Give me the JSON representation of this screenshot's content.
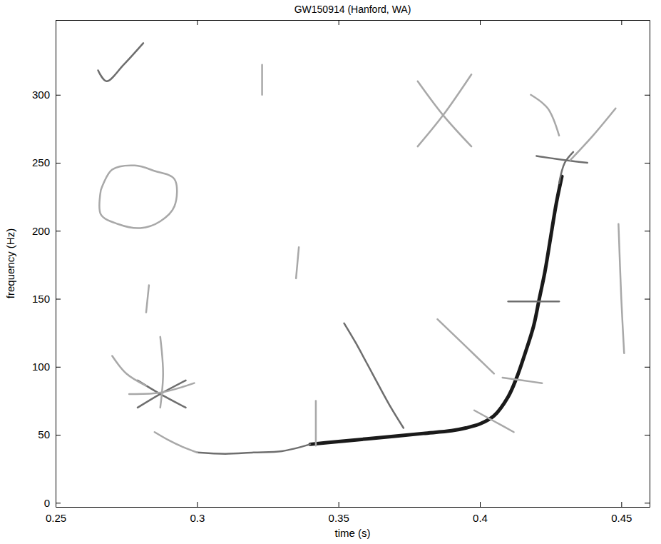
{
  "chart_data": {
    "type": "spectrogram",
    "title": "GW150914 (Hanford, WA)",
    "x_label": "time (s)",
    "y_label": "frequency (Hz)",
    "xlim": [
      0.25,
      0.46
    ],
    "ylim": [
      -3,
      355
    ],
    "xticks": [
      0.25,
      0.3,
      0.35,
      0.4,
      0.45
    ],
    "yticks": [
      0,
      50,
      100,
      150,
      200,
      250,
      300
    ],
    "grid": false,
    "series": [
      {
        "x": [
          0.34,
          0.35,
          0.36,
          0.37,
          0.38,
          0.39,
          0.395,
          0.4,
          0.405,
          0.41,
          0.413,
          0.416,
          0.419,
          0.421,
          0.423,
          0.425,
          0.427,
          0.429
        ],
        "values": [
          43,
          45,
          47,
          49,
          51,
          53,
          55,
          58,
          64,
          78,
          92,
          110,
          130,
          150,
          170,
          195,
          220,
          240
        ],
        "color": "#1a1a1a",
        "line_style": "bold"
      },
      {
        "x": [
          0.3,
          0.31,
          0.32,
          0.33,
          0.34
        ],
        "values": [
          37,
          36,
          37,
          38,
          43
        ],
        "color": "#6e6e6e",
        "line_style": "solid"
      },
      {
        "x": [
          0.285,
          0.29,
          0.295,
          0.3
        ],
        "values": [
          52,
          46,
          41,
          37
        ],
        "color": "#a8a8a8",
        "line_style": "solid"
      },
      {
        "x": [
          0.428,
          0.43,
          0.433
        ],
        "values": [
          235,
          250,
          258
        ],
        "color": "#6e6e6e",
        "line_style": "solid"
      },
      {
        "x": [
          0.279,
          0.287,
          0.296
        ],
        "values": [
          90,
          80,
          70
        ],
        "color": "#6e6e6e",
        "line_style": "solid"
      },
      {
        "x": [
          0.279,
          0.287,
          0.296
        ],
        "values": [
          70,
          80,
          90
        ],
        "color": "#6e6e6e",
        "line_style": "solid"
      },
      {
        "x": [
          0.276,
          0.287,
          0.299
        ],
        "values": [
          80,
          81,
          88
        ],
        "color": "#a8a8a8",
        "line_style": "solid"
      },
      {
        "x": [
          0.287,
          0.288,
          0.287
        ],
        "values": [
          70,
          95,
          122
        ],
        "color": "#a8a8a8",
        "line_style": "solid"
      },
      {
        "x": [
          0.27,
          0.275,
          0.282
        ],
        "values": [
          108,
          95,
          86
        ],
        "color": "#a8a8a8",
        "line_style": "solid"
      },
      {
        "x": [
          0.265,
          0.268,
          0.274,
          0.281
        ],
        "values": [
          318,
          310,
          322,
          338
        ],
        "color": "#6e6e6e",
        "line_style": "solid"
      },
      {
        "x": [
          0.266,
          0.27,
          0.278,
          0.285,
          0.292,
          0.292,
          0.287,
          0.28,
          0.272,
          0.266,
          0.266
        ],
        "values": [
          230,
          245,
          248,
          244,
          238,
          218,
          207,
          202,
          205,
          212,
          230
        ],
        "color": "#a8a8a8",
        "line_style": "solid"
      },
      {
        "x": [
          0.378,
          0.387,
          0.397
        ],
        "values": [
          310,
          285,
          262
        ],
        "color": "#a8a8a8",
        "line_style": "solid"
      },
      {
        "x": [
          0.378,
          0.387,
          0.397
        ],
        "values": [
          262,
          285,
          315
        ],
        "color": "#a8a8a8",
        "line_style": "solid"
      },
      {
        "x": [
          0.352,
          0.356,
          0.362,
          0.368,
          0.373
        ],
        "values": [
          132,
          118,
          95,
          72,
          55
        ],
        "color": "#6e6e6e",
        "line_style": "solid"
      },
      {
        "x": [
          0.342,
          0.342
        ],
        "values": [
          42,
          75
        ],
        "color": "#a8a8a8",
        "line_style": "solid"
      },
      {
        "x": [
          0.41,
          0.42,
          0.428
        ],
        "values": [
          148,
          148,
          148
        ],
        "color": "#6e6e6e",
        "line_style": "solid"
      },
      {
        "x": [
          0.42,
          0.43,
          0.438
        ],
        "values": [
          255,
          252,
          250
        ],
        "color": "#6e6e6e",
        "line_style": "solid"
      },
      {
        "x": [
          0.449,
          0.45,
          0.451
        ],
        "values": [
          205,
          150,
          110
        ],
        "color": "#a8a8a8",
        "line_style": "solid"
      },
      {
        "x": [
          0.398,
          0.405,
          0.412
        ],
        "values": [
          68,
          60,
          52
        ],
        "color": "#a8a8a8",
        "line_style": "solid"
      },
      {
        "x": [
          0.408,
          0.415,
          0.422
        ],
        "values": [
          92,
          90,
          88
        ],
        "color": "#a8a8a8",
        "line_style": "solid"
      },
      {
        "x": [
          0.323,
          0.323
        ],
        "values": [
          300,
          322
        ],
        "color": "#a8a8a8",
        "line_style": "solid"
      },
      {
        "x": [
          0.335,
          0.336
        ],
        "values": [
          165,
          188
        ],
        "color": "#a8a8a8",
        "line_style": "solid"
      },
      {
        "x": [
          0.282,
          0.283
        ],
        "values": [
          140,
          160
        ],
        "color": "#a8a8a8",
        "line_style": "solid"
      },
      {
        "x": [
          0.418,
          0.424,
          0.428
        ],
        "values": [
          300,
          290,
          270
        ],
        "color": "#a8a8a8",
        "line_style": "solid"
      },
      {
        "x": [
          0.385,
          0.395,
          0.405
        ],
        "values": [
          135,
          115,
          95
        ],
        "color": "#a8a8a8",
        "line_style": "solid"
      },
      {
        "x": [
          0.432,
          0.44,
          0.448
        ],
        "values": [
          252,
          270,
          290
        ],
        "color": "#a8a8a8",
        "line_style": "solid"
      }
    ]
  }
}
